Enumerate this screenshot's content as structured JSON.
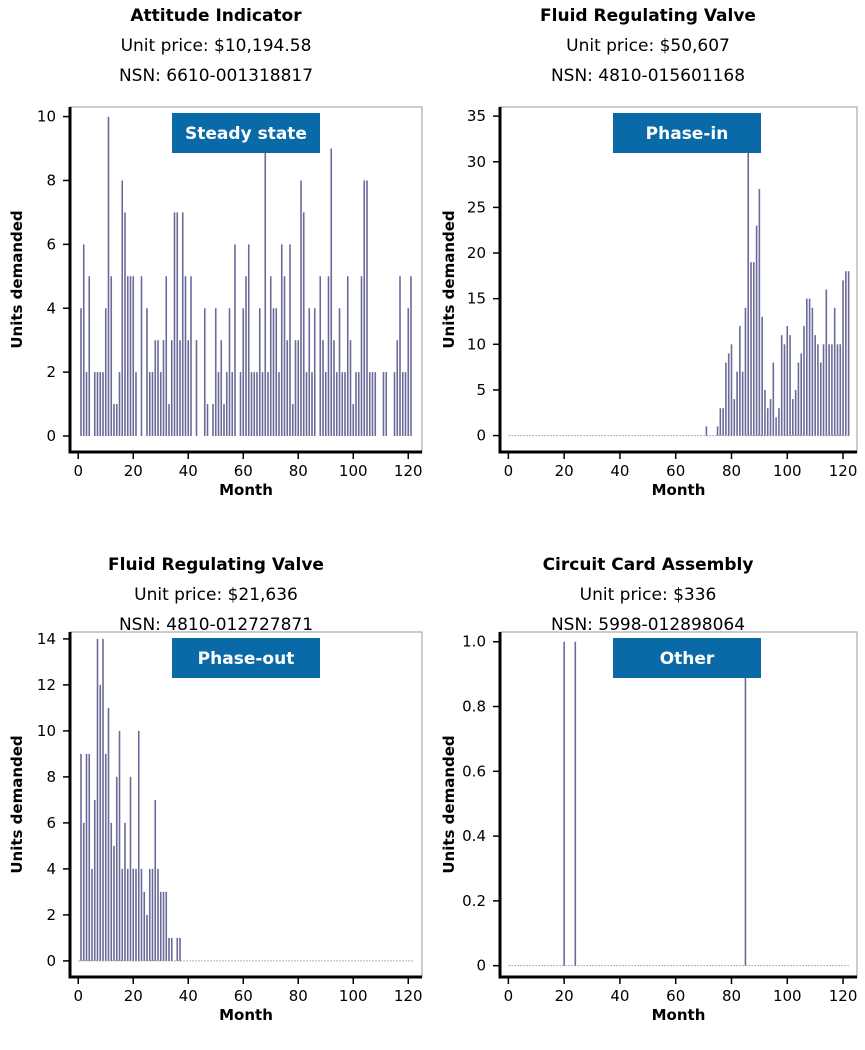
{
  "chart_data": [
    {
      "type": "bar",
      "title": "Attitude Indicator",
      "subtitle_price": "Unit price: $10,194.58",
      "subtitle_nsn": "NSN: 6610-001318817",
      "badge": "Steady state",
      "xlabel": "Month",
      "ylabel": "Units demanded",
      "xlim": [
        -3,
        125
      ],
      "ylim": [
        -0.5,
        10.3
      ],
      "xticks": [
        0,
        20,
        40,
        60,
        80,
        100,
        120
      ],
      "yticks": [
        0,
        2,
        4,
        6,
        8,
        10
      ],
      "bar_color": "#6b6b9a",
      "baseline_dotted": false,
      "x": [
        1,
        2,
        3,
        4,
        5,
        6,
        7,
        8,
        9,
        10,
        11,
        12,
        13,
        14,
        15,
        16,
        17,
        18,
        19,
        20,
        21,
        22,
        23,
        24,
        25,
        26,
        27,
        28,
        29,
        30,
        31,
        32,
        33,
        34,
        35,
        36,
        37,
        38,
        39,
        40,
        41,
        42,
        43,
        44,
        45,
        46,
        47,
        48,
        49,
        50,
        51,
        52,
        53,
        54,
        55,
        56,
        57,
        58,
        59,
        60,
        61,
        62,
        63,
        64,
        65,
        66,
        67,
        68,
        69,
        70,
        71,
        72,
        73,
        74,
        75,
        76,
        77,
        78,
        79,
        80,
        81,
        82,
        83,
        84,
        85,
        86,
        87,
        88,
        89,
        90,
        91,
        92,
        93,
        94,
        95,
        96,
        97,
        98,
        99,
        100,
        101,
        102,
        103,
        104,
        105,
        106,
        107,
        108,
        109,
        110,
        111,
        112,
        113,
        114,
        115,
        116,
        117,
        118,
        119,
        120,
        121
      ],
      "values": [
        4,
        6,
        2,
        5,
        0,
        2,
        2,
        2,
        2,
        4,
        10,
        5,
        1,
        1,
        2,
        8,
        7,
        5,
        5,
        5,
        2,
        0,
        5,
        0,
        4,
        2,
        2,
        3,
        3,
        2,
        3,
        5,
        1,
        3,
        7,
        7,
        3,
        7,
        5,
        3,
        5,
        0,
        3,
        0,
        0,
        4,
        1,
        0,
        1,
        4,
        2,
        3,
        1,
        2,
        4,
        2,
        6,
        0,
        2,
        4,
        5,
        6,
        2,
        2,
        2,
        4,
        2,
        9,
        2,
        5,
        4,
        4,
        2,
        6,
        5,
        3,
        6,
        1,
        3,
        3,
        8,
        7,
        2,
        4,
        2,
        4,
        0,
        5,
        3,
        2,
        5,
        9,
        3,
        2,
        4,
        2,
        2,
        5,
        3,
        1,
        2,
        2,
        5,
        8,
        8,
        2,
        2,
        2,
        0,
        0,
        2,
        2,
        0,
        0,
        2,
        3,
        5,
        2,
        2,
        4,
        5
      ]
    },
    {
      "type": "bar",
      "title": "Fluid Regulating Valve",
      "subtitle_price": "Unit price: $50,607",
      "subtitle_nsn": "NSN: 4810-015601168",
      "badge": "Phase-in",
      "xlabel": "Month",
      "ylabel": "Units demanded",
      "xlim": [
        -3,
        125
      ],
      "ylim": [
        -1.8,
        36
      ],
      "xticks": [
        0,
        20,
        40,
        60,
        80,
        100,
        120
      ],
      "yticks": [
        0,
        5,
        10,
        15,
        20,
        25,
        30,
        35
      ],
      "bar_color": "#6b6b9a",
      "baseline_dotted": true,
      "x": [
        71,
        75,
        76,
        77,
        78,
        79,
        80,
        81,
        82,
        83,
        84,
        85,
        86,
        87,
        88,
        89,
        90,
        91,
        92,
        93,
        94,
        95,
        96,
        97,
        98,
        99,
        100,
        101,
        102,
        103,
        104,
        105,
        106,
        107,
        108,
        109,
        110,
        111,
        112,
        113,
        114,
        115,
        116,
        117,
        118,
        119,
        120,
        121,
        122
      ],
      "values": [
        1,
        1,
        3,
        3,
        8,
        9,
        10,
        4,
        7,
        12,
        7,
        14,
        32,
        19,
        19,
        23,
        27,
        13,
        5,
        3,
        4,
        8,
        2,
        3,
        11,
        10,
        12,
        11,
        4,
        5,
        8,
        9,
        12,
        15,
        15,
        14,
        11,
        10,
        8,
        10,
        16,
        10,
        10,
        14,
        10,
        10,
        17,
        18,
        18
      ]
    },
    {
      "type": "bar",
      "title": "Fluid Regulating Valve",
      "subtitle_price": "Unit price: $21,636",
      "subtitle_nsn": "NSN: 4810-012727871",
      "badge": "Phase-out",
      "xlabel": "Month",
      "ylabel": "Units demanded",
      "xlim": [
        -3,
        125
      ],
      "ylim": [
        -0.7,
        14.3
      ],
      "xticks": [
        0,
        20,
        40,
        60,
        80,
        100,
        120
      ],
      "yticks": [
        0,
        2,
        4,
        6,
        8,
        10,
        12,
        14
      ],
      "bar_color": "#6b6b9a",
      "baseline_dotted": true,
      "x": [
        1,
        2,
        3,
        4,
        5,
        6,
        7,
        8,
        9,
        10,
        11,
        12,
        13,
        14,
        15,
        16,
        17,
        18,
        19,
        20,
        21,
        22,
        23,
        24,
        25,
        26,
        27,
        28,
        29,
        30,
        31,
        32,
        33,
        34,
        36,
        37
      ],
      "values": [
        9,
        6,
        9,
        9,
        4,
        7,
        14,
        12,
        14,
        9,
        11,
        6,
        5,
        8,
        10,
        4,
        6,
        4,
        8,
        4,
        4,
        10,
        4,
        3,
        2,
        4,
        4,
        7,
        4,
        3,
        3,
        3,
        1,
        1,
        1,
        1
      ]
    },
    {
      "type": "bar",
      "title": "Circuit Card Assembly",
      "subtitle_price": "Unit price: $336",
      "subtitle_nsn": "NSN: 5998-012898064",
      "badge": "Other",
      "xlabel": "Month",
      "ylabel": "Units demanded",
      "xlim": [
        -3,
        125
      ],
      "ylim": [
        -0.035,
        1.03
      ],
      "xticks": [
        0,
        20,
        40,
        60,
        80,
        100,
        120
      ],
      "yticks": [
        "0",
        "0.2",
        "0.4",
        "0.6",
        "0.8",
        "1.0"
      ],
      "bar_color": "#6b6b9a",
      "baseline_dotted": true,
      "x": [
        20,
        24,
        85
      ],
      "values": [
        1,
        1,
        1
      ]
    }
  ],
  "colors": {
    "badge": "#0a6aa8",
    "bars": "#6b6b9a",
    "axis": "#000000",
    "baseline": "#b78c9c"
  }
}
